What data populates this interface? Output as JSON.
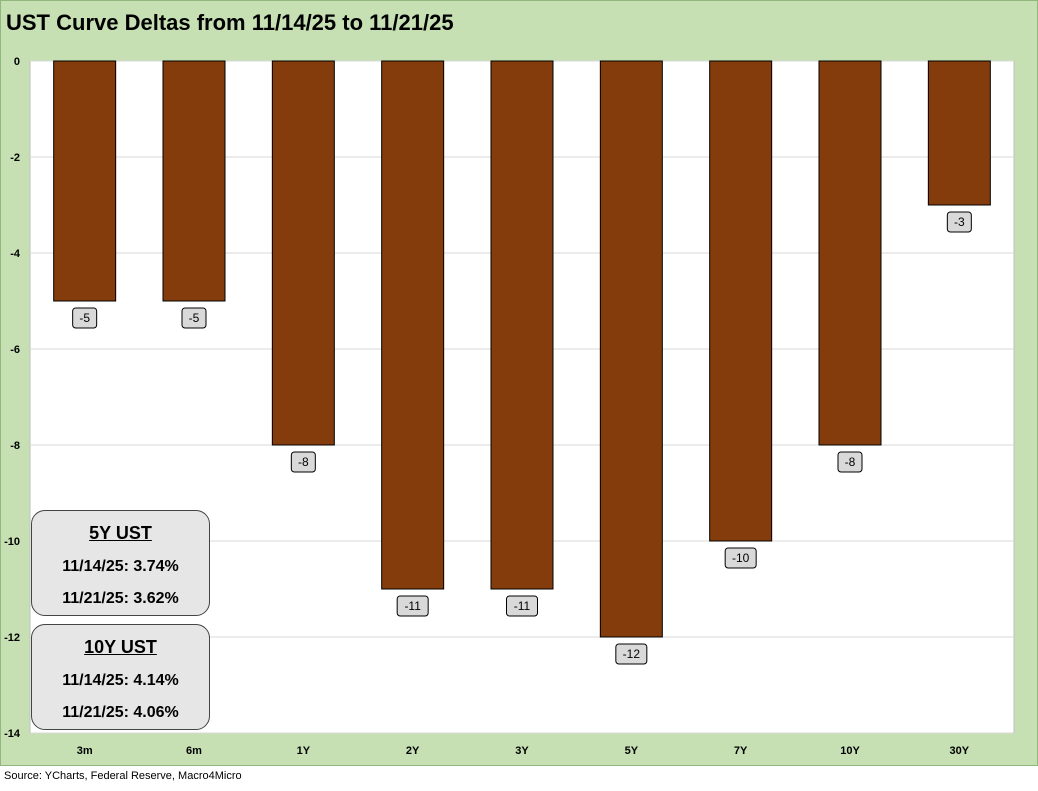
{
  "title": "UST Curve Deltas from 11/14/25 to 11/21/25",
  "source": "Source: YCharts, Federal Reserve, Macro4Micro",
  "colors": {
    "bar": "#843c0c",
    "panel": "#c6e0b4",
    "plot": "#ffffff",
    "label_bg": "#d9d9d9"
  },
  "chart_data": {
    "type": "bar",
    "title": "UST Curve Deltas from 11/14/25 to 11/21/25",
    "xlabel": "",
    "ylabel": "",
    "categories": [
      "3m",
      "6m",
      "1Y",
      "2Y",
      "3Y",
      "5Y",
      "7Y",
      "10Y",
      "30Y"
    ],
    "values": [
      -5,
      -5,
      -8,
      -11,
      -11,
      -12,
      -10,
      -8,
      -3
    ],
    "data_labels": [
      "-5",
      "-5",
      "-8",
      "-11",
      "-11",
      "-12",
      "-10",
      "-8",
      "-3"
    ],
    "ylim": [
      -14,
      0
    ],
    "yticks": [
      0,
      -2,
      -4,
      -6,
      -8,
      -10,
      -12,
      -14
    ],
    "grid": true
  },
  "boxes": [
    {
      "title": "5Y UST",
      "line1": "11/14/25: 3.74%",
      "line2": "11/21/25: 3.62%"
    },
    {
      "title": "10Y UST",
      "line1": "11/14/25: 4.14%",
      "line2": "11/21/25: 4.06%"
    }
  ]
}
